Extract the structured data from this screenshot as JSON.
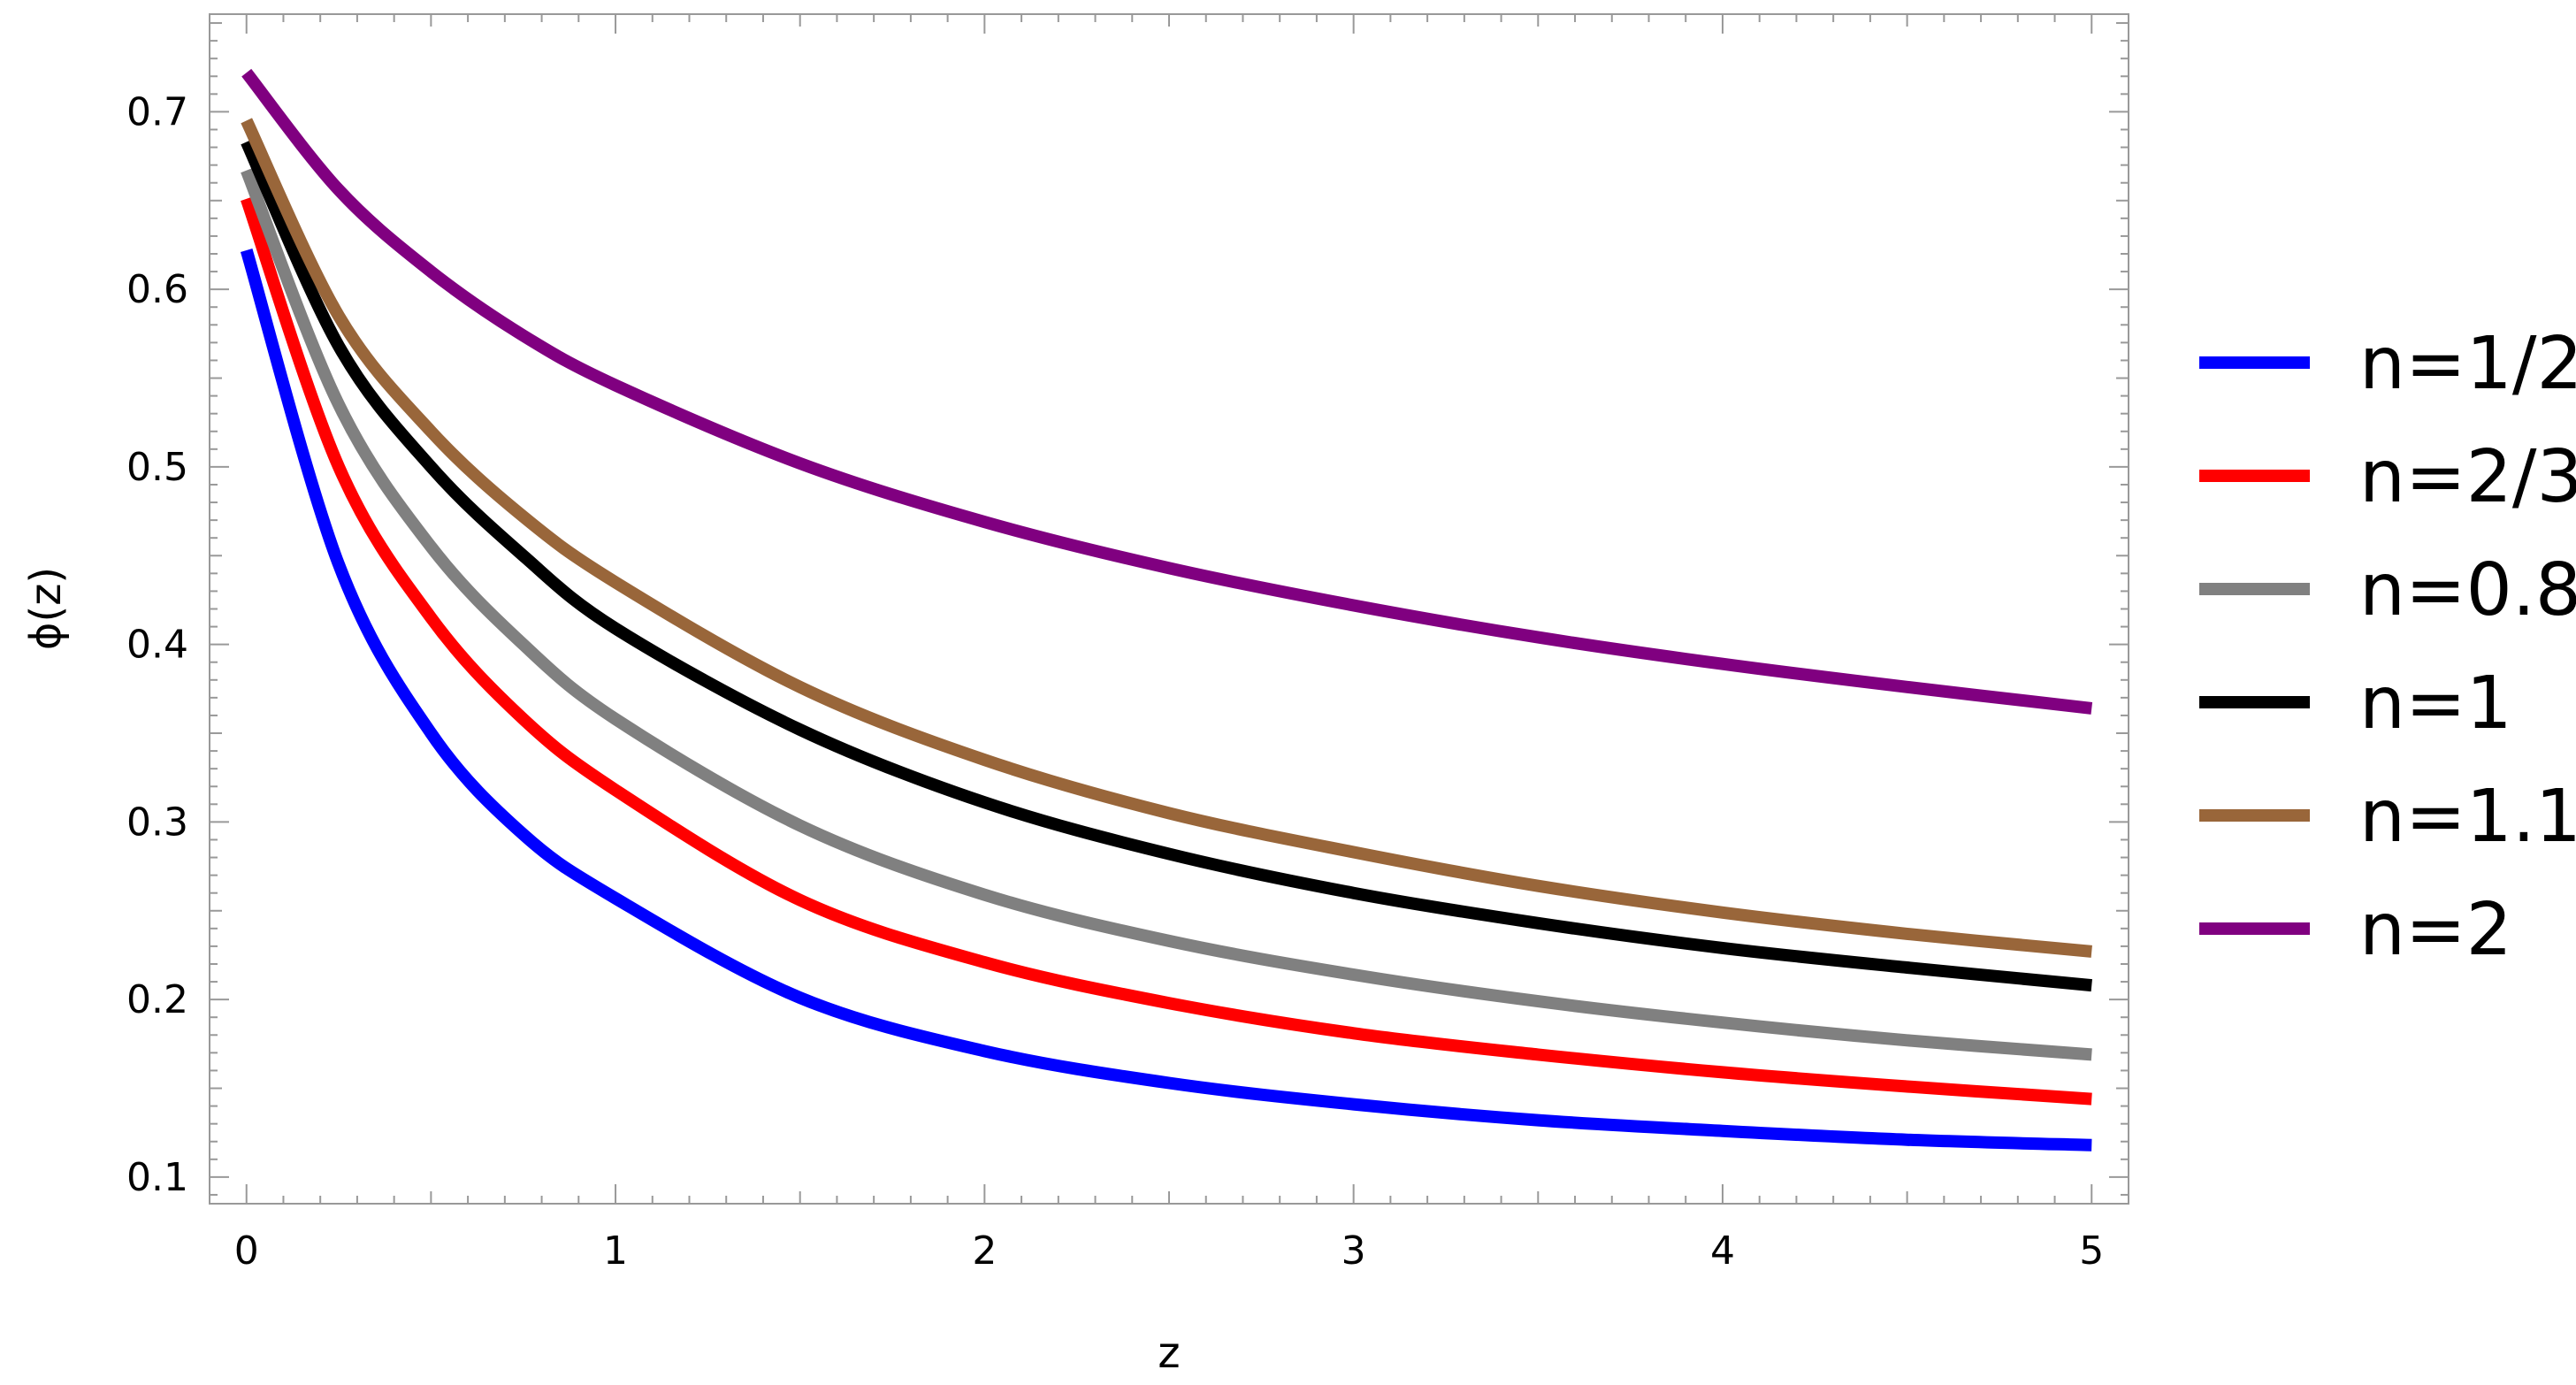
{
  "chart_data": {
    "type": "line",
    "xlabel": "z",
    "ylabel": "ϕ(z)",
    "xlim": [
      -0.1,
      5.1
    ],
    "ylim": [
      0.085,
      0.755
    ],
    "x_ticks": [
      0,
      1,
      2,
      3,
      4,
      5
    ],
    "y_ticks": [
      0.1,
      0.2,
      0.3,
      0.4,
      0.5,
      0.6,
      0.7
    ],
    "x_tick_labels": [
      "0",
      "1",
      "2",
      "3",
      "4",
      "5"
    ],
    "y_tick_labels": [
      "0.1",
      "0.2",
      "0.3",
      "0.4",
      "0.5",
      "0.6",
      "0.7"
    ],
    "grid": false,
    "legend_position": "right",
    "x": [
      0,
      0.25,
      0.5,
      0.75,
      1,
      1.5,
      2,
      2.5,
      3,
      3.5,
      4,
      4.5,
      5
    ],
    "series": [
      {
        "name": "n=1/2",
        "color": "#0000ff",
        "values": [
          0.622,
          0.445,
          0.35,
          0.293,
          0.257,
          0.201,
          0.171,
          0.153,
          0.141,
          0.132,
          0.126,
          0.121,
          0.118
        ]
      },
      {
        "name": "n=2/3",
        "color": "#ff0000",
        "values": [
          0.651,
          0.5,
          0.415,
          0.358,
          0.318,
          0.256,
          0.221,
          0.198,
          0.181,
          0.169,
          0.159,
          0.151,
          0.144
        ]
      },
      {
        "name": "n=0.8",
        "color": "#808080",
        "values": [
          0.667,
          0.535,
          0.455,
          0.4,
          0.358,
          0.298,
          0.259,
          0.233,
          0.214,
          0.199,
          0.187,
          0.177,
          0.169
        ]
      },
      {
        "name": "n=1",
        "color": "#000000",
        "values": [
          0.683,
          0.568,
          0.5,
          0.45,
          0.409,
          0.352,
          0.311,
          0.282,
          0.26,
          0.243,
          0.229,
          0.218,
          0.208
        ]
      },
      {
        "name": "n=1.1",
        "color": "#99663a",
        "values": [
          0.695,
          0.585,
          0.52,
          0.472,
          0.435,
          0.376,
          0.335,
          0.305,
          0.283,
          0.264,
          0.249,
          0.237,
          0.227
        ]
      },
      {
        "name": "n=2",
        "color": "#800080",
        "values": [
          0.722,
          0.656,
          0.61,
          0.574,
          0.546,
          0.502,
          0.469,
          0.443,
          0.422,
          0.404,
          0.389,
          0.376,
          0.364
        ]
      }
    ]
  }
}
